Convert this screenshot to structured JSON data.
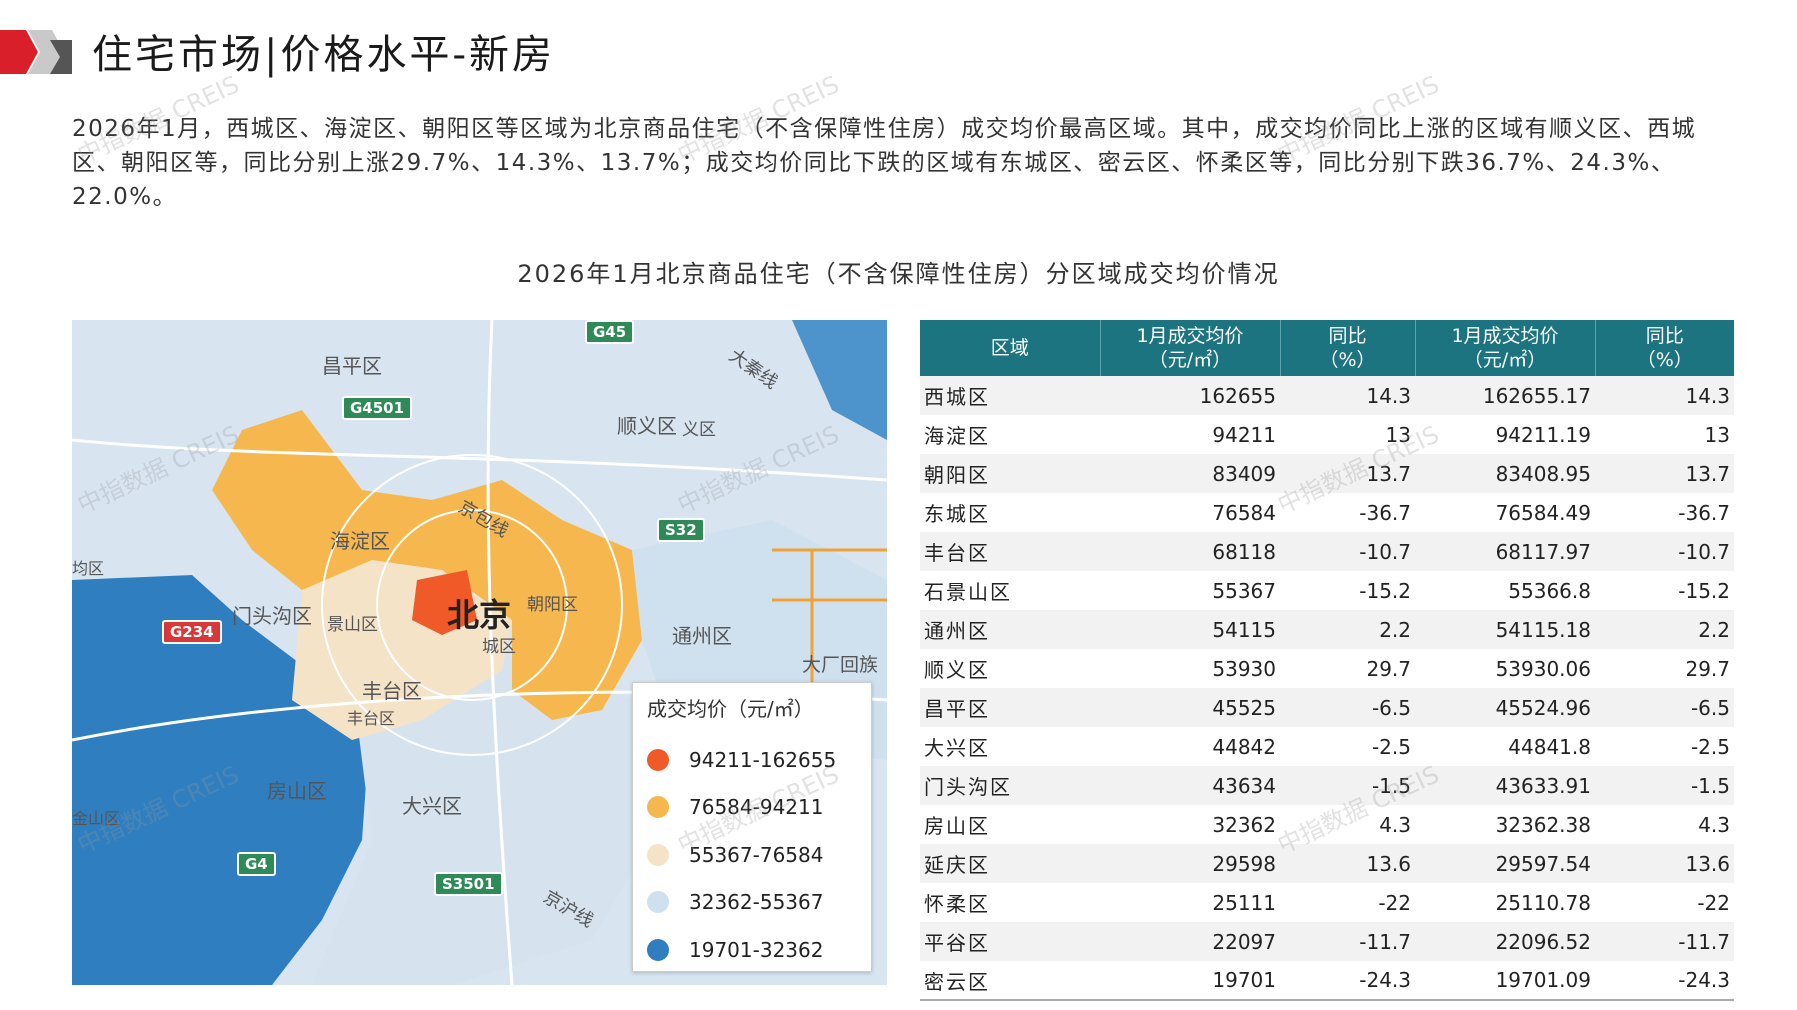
{
  "header": {
    "title": "住宅市场|价格水平-新房"
  },
  "summary": "2026年1月，西城区、海淀区、朝阳区等区域为北京商品住宅（不含保障性住房）成交均价最高区域。其中，成交均价同比上涨的区域有顺义区、西城区、朝阳区等，同比分别上涨29.7%、14.3%、13.7%；成交均价同比下跌的区域有东城区、密云区、怀柔区等，同比分别下跌36.7%、24.3%、22.0%。",
  "chart_title": "2026年1月北京商品住宅（不含保障性住房）分区域成交均价情况",
  "map": {
    "labels": {
      "changping": "昌平区",
      "shunyi": "顺义区",
      "shunyi2": "义区",
      "haidian": "海淀区",
      "beijing": "北京",
      "chaoyang": "朝阳区",
      "mentougou": "门头沟区",
      "shijingshan": "景山区",
      "tongzhou": "通州区",
      "fengtai": "丰台区",
      "fengtai2": "丰台区",
      "fangshan": "房山区",
      "daxing": "大兴区",
      "dachang": "大厂回族",
      "xicheng_small": "城区",
      "left_edge": "均区",
      "lowleft": "金山区",
      "road_jingbao": "京包线",
      "road_daqin": "大秦线",
      "road_jinghu": "京沪线"
    },
    "shields": {
      "g45": "G45",
      "g4501": "G4501",
      "s32": "S32",
      "g234": "G234",
      "g4": "G4",
      "s3501": "S3501"
    },
    "legend": {
      "title": "成交均价（元/㎡）",
      "items": [
        {
          "label": "94211-162655",
          "color": "#f05a28"
        },
        {
          "label": "76584-94211",
          "color": "#f6b84e"
        },
        {
          "label": "55367-76584",
          "color": "#f5e3c8"
        },
        {
          "label": "32362-55367",
          "color": "#cfe0ef"
        },
        {
          "label": "19701-32362",
          "color": "#2f7fc0"
        }
      ]
    }
  },
  "table": {
    "headers": [
      "区域",
      "1月成交均价\n（元/㎡）",
      "同比\n（%）",
      "1月成交均价\n（元/㎡）",
      "同比\n（%）"
    ],
    "rows": [
      [
        "西城区",
        "162655",
        "14.3",
        "162655.17",
        "14.3"
      ],
      [
        "海淀区",
        "94211",
        "13",
        "94211.19",
        "13"
      ],
      [
        "朝阳区",
        "83409",
        "13.7",
        "83408.95",
        "13.7"
      ],
      [
        "东城区",
        "76584",
        "-36.7",
        "76584.49",
        "-36.7"
      ],
      [
        "丰台区",
        "68118",
        "-10.7",
        "68117.97",
        "-10.7"
      ],
      [
        "石景山区",
        "55367",
        "-15.2",
        "55366.8",
        "-15.2"
      ],
      [
        "通州区",
        "54115",
        "2.2",
        "54115.18",
        "2.2"
      ],
      [
        "顺义区",
        "53930",
        "29.7",
        "53930.06",
        "29.7"
      ],
      [
        "昌平区",
        "45525",
        "-6.5",
        "45524.96",
        "-6.5"
      ],
      [
        "大兴区",
        "44842",
        "-2.5",
        "44841.8",
        "-2.5"
      ],
      [
        "门头沟区",
        "43634",
        "-1.5",
        "43633.91",
        "-1.5"
      ],
      [
        "房山区",
        "32362",
        "4.3",
        "32362.38",
        "4.3"
      ],
      [
        "延庆区",
        "29598",
        "13.6",
        "29597.54",
        "13.6"
      ],
      [
        "怀柔区",
        "25111",
        "-22",
        "25110.78",
        "-22"
      ],
      [
        "平谷区",
        "22097",
        "-11.7",
        "22096.52",
        "-11.7"
      ],
      [
        "密云区",
        "19701",
        "-24.3",
        "19701.09",
        "-24.3"
      ]
    ]
  },
  "watermark": "中指数据 CREIS",
  "colors": {
    "header_teal": "#1c7480",
    "accent_red": "#d9202a"
  }
}
